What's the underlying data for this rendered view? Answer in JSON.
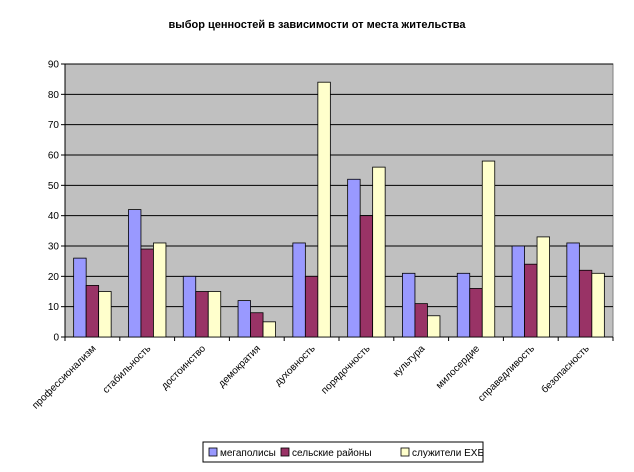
{
  "chart_data": {
    "type": "bar",
    "title": "выбор ценностей в зависимости от места жительства",
    "xlabel": "",
    "ylabel": "",
    "ylim": [
      0,
      90
    ],
    "yticks": [
      0,
      10,
      20,
      30,
      40,
      50,
      60,
      70,
      80,
      90
    ],
    "grid": true,
    "legend_position": "bottom",
    "plot_background": "#c0c0c0",
    "categories": [
      "профессионализм",
      "стабильность",
      "достоинство",
      "демократия",
      "духовность",
      "порядочность",
      "культура",
      "милосердие",
      "справедливость",
      "безопасность"
    ],
    "series": [
      {
        "name": "мегаполисы",
        "color": "#9999ff",
        "values": [
          26,
          42,
          20,
          12,
          31,
          52,
          21,
          21,
          30,
          31
        ]
      },
      {
        "name": "сельские районы",
        "color": "#993366",
        "values": [
          17,
          29,
          15,
          8,
          20,
          40,
          11,
          16,
          24,
          22
        ]
      },
      {
        "name": "служители ЕХБ",
        "color": "#ffffcc",
        "values": [
          15,
          31,
          15,
          5,
          84,
          56,
          7,
          58,
          33,
          21
        ]
      }
    ]
  }
}
